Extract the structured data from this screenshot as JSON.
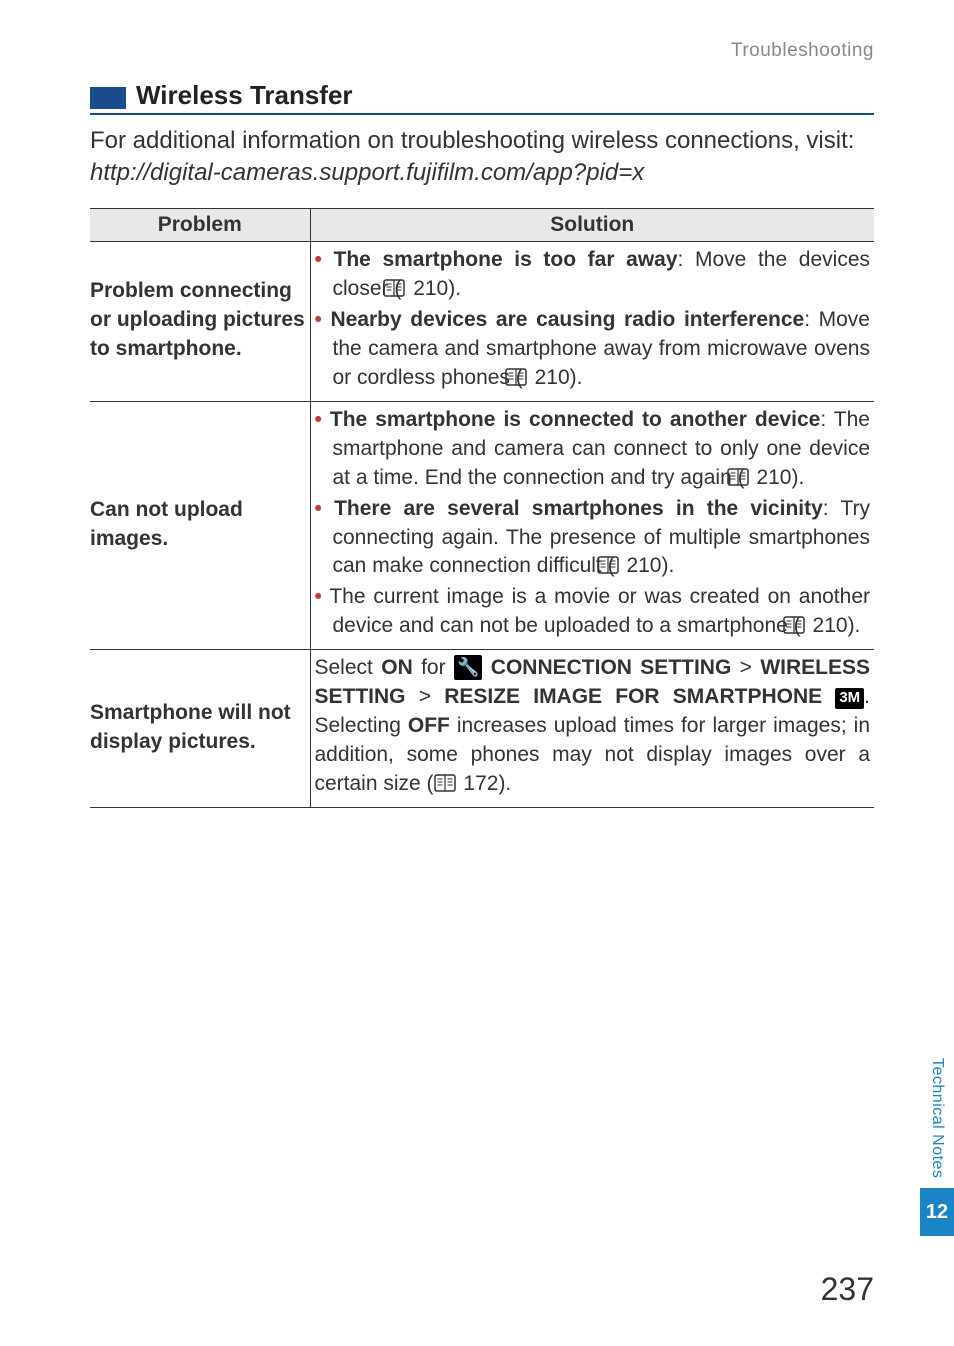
{
  "breadcrumb": "Troubleshooting",
  "section": {
    "title": "Wireless Transfer"
  },
  "intro": {
    "text": "For additional information on troubleshooting wireless connections, visit: ",
    "link": "http://digital-cameras.support.fujifilm.com/app?pid=x"
  },
  "table": {
    "headers": {
      "problem": "Problem",
      "solution": "Solution"
    },
    "rows": [
      {
        "problem": "Problem connecting or uploading pictures to smartphone.",
        "bullets": [
          {
            "bold": "The smartphone is too far away",
            "rest": ": Move the devices closer (",
            "page": "210",
            "tail": ")."
          },
          {
            "bold": "Nearby devices are causing radio interference",
            "rest": ": Move the camera and smartphone away from microwave ovens or cordless phones (",
            "page": "210",
            "tail": ")."
          }
        ]
      },
      {
        "problem": "Can not upload images.",
        "bullets": [
          {
            "bold": "The smartphone is connected to another device",
            "rest": ": The smartphone and camera can connect to only one device at a time. End the connection and try again (",
            "page": "210",
            "tail": ")."
          },
          {
            "bold": "There are several smartphones in the vicinity",
            "rest": ": Try connecting again. The presence of multiple smartphones can make connection difficult (",
            "page": "210",
            "tail": ")."
          },
          {
            "bold": "",
            "rest": "The current image is a movie or was created on another device and can not be uploaded to a smartphone (",
            "page": "210",
            "tail": ")."
          }
        ]
      },
      {
        "problem": "Smartphone will not display pictures.",
        "plain": {
          "pre1": "Select ",
          "on": "ON",
          "pre2": " for ",
          "menu1": " CONNECTION SETTING",
          "gt1": " > ",
          "menu2": "WIRELESS SETTING",
          "gt2": " > ",
          "menu3": "RESIZE IMAGE FOR SMARTPHONE ",
          "badge": "3M",
          "post1": ". Selecting ",
          "off": "OFF",
          "post2": " increases upload times for larger images; in addition, some phones may not display images over a certain size (",
          "page": "172",
          "tail": ")."
        }
      }
    ]
  },
  "sidetab": {
    "label": "Technical Notes",
    "num": "12"
  },
  "page_number": "237",
  "icons": {
    "page_ref": "<svg width='24' height='18' viewBox='0 0 24 18'><rect x='1' y='1' width='20' height='16' rx='2' fill='none' stroke='#333' stroke-width='1.5'/><line x1='11' y1='1' x2='11' y2='17' stroke='#333' stroke-width='1.2'/><line x1='3.5' y1='5' x2='8.5' y2='5' stroke='#333' stroke-width='1'/><line x1='3.5' y1='8' x2='8.5' y2='8' stroke='#333' stroke-width='1'/><line x1='3.5' y1='11' x2='8.5' y2='11' stroke='#333' stroke-width='1'/><line x1='13.5' y1='5' x2='18.5' y2='5' stroke='#333' stroke-width='1'/><line x1='13.5' y1='8' x2='18.5' y2='8' stroke='#333' stroke-width='1'/><line x1='13.5' y1='11' x2='18.5' y2='11' stroke='#333' stroke-width='1'/></svg>",
    "wrench": "🔧"
  }
}
